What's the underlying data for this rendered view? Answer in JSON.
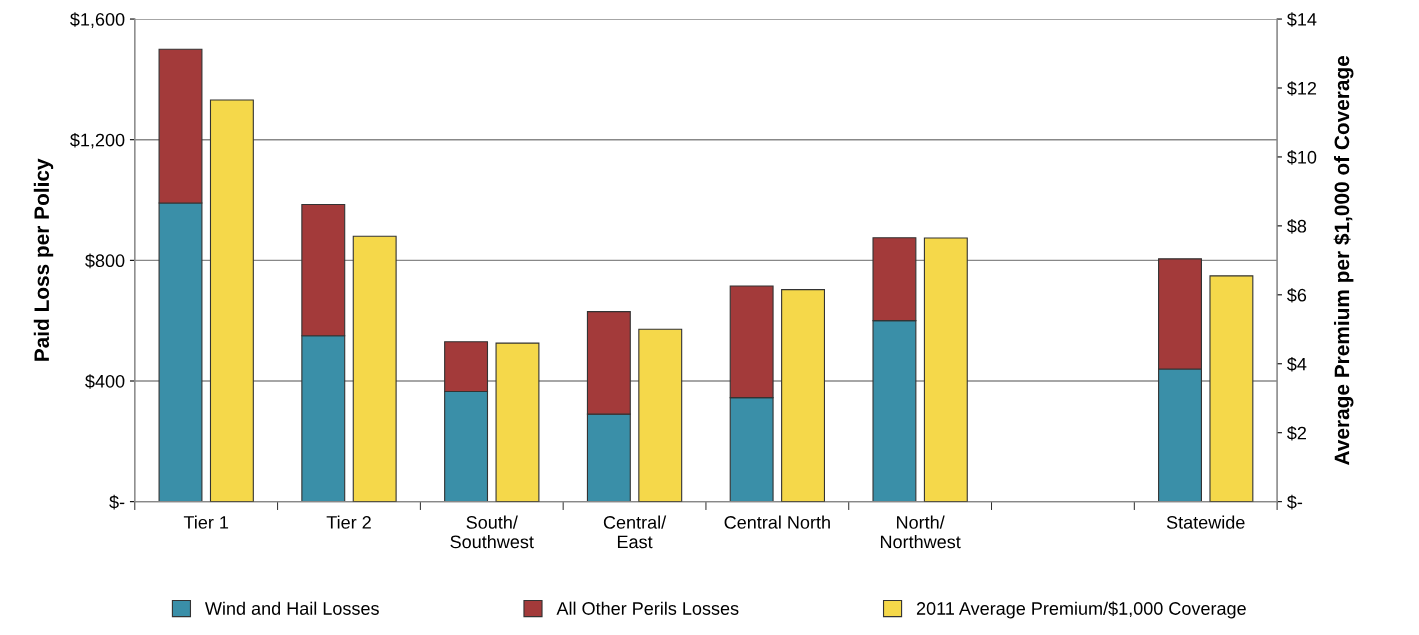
{
  "chart_data": {
    "type": "bar",
    "stacked": true,
    "ylabel": "Paid Loss per Policy",
    "y2label": "Average Premium per $1,000 of Coverage",
    "categories": [
      "Tier 1",
      "Tier 2",
      "South/\nSouthwest",
      "Central/\nEast",
      "Central North",
      "North/\nNorthwest",
      null,
      "Statewide"
    ],
    "series": [
      {
        "name": "Wind and Hail Losses",
        "color": "#3a8fa8",
        "values": [
          990,
          550,
          365,
          290,
          345,
          600,
          null,
          440
        ]
      },
      {
        "name": "All Other Perils Losses",
        "color": "#a33a3a",
        "values": [
          510,
          435,
          165,
          340,
          370,
          275,
          null,
          365
        ]
      },
      {
        "name": "2011 Average Premium/$1,000 Coverage",
        "color": "#f5d84a",
        "axis": "y2",
        "values": [
          11.65,
          7.7,
          4.6,
          5.0,
          6.15,
          7.65,
          null,
          6.55
        ]
      }
    ],
    "ylim": [
      0,
      1600
    ],
    "yticks": [
      {
        "value": 0,
        "label": "$-"
      },
      {
        "value": 400,
        "label": "$400"
      },
      {
        "value": 800,
        "label": "$800"
      },
      {
        "value": 1200,
        "label": "$1,200"
      },
      {
        "value": 1600,
        "label": "$1,600"
      }
    ],
    "y2lim": [
      0,
      14
    ],
    "y2ticks": [
      {
        "value": 0,
        "label": "$-"
      },
      {
        "value": 2,
        "label": "$2"
      },
      {
        "value": 4,
        "label": "$4"
      },
      {
        "value": 6,
        "label": "$6"
      },
      {
        "value": 8,
        "label": "$8"
      },
      {
        "value": 10,
        "label": "$10"
      },
      {
        "value": 12,
        "label": "$12"
      },
      {
        "value": 14,
        "label": "$14"
      }
    ],
    "grid": "y",
    "legend": "bottom"
  }
}
